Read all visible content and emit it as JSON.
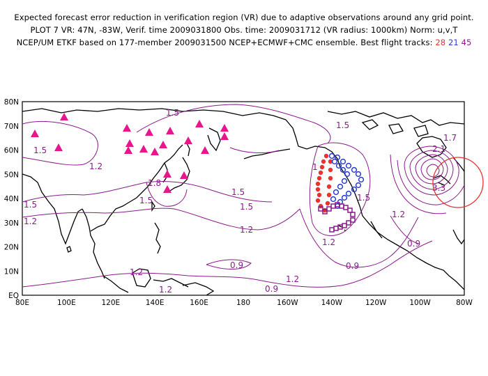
{
  "header": {
    "line1": "Expected forecast error reduction in verification region (VR) due to adaptive observations around any grid point.",
    "line2": "PLOT 7 VR: 47N, -83W, Verif. time 2009031800 Obs. time: 2009031712 (VR radius: 1000km) Norm: u,v,T",
    "line3_prefix": "NCEP/UM ETKF based on 177-member 2009031500 NCEP+ECMWF+CMC ensemble. Best flight tracks:",
    "tracks": [
      "28",
      "21",
      "45"
    ]
  },
  "map": {
    "lon_labels": [
      "80E",
      "100E",
      "120E",
      "140E",
      "160E",
      "180",
      "160W",
      "140W",
      "120W",
      "100W",
      "80W"
    ],
    "lat_labels": [
      "EQ",
      "10N",
      "20N",
      "30N",
      "40N",
      "50N",
      "60N",
      "70N",
      "80N"
    ],
    "contour_labels": [
      "1.5",
      "1.5",
      "1.5",
      "1.5",
      "1.2",
      "1.8",
      "1.5",
      "1.5",
      "1.2",
      "1.2",
      "1.2",
      "1.2",
      "0.9",
      "0.9",
      "0.9",
      "1.2",
      "1.5",
      "1.5",
      "1.2",
      "0.9",
      "1.2",
      "2.1",
      "3.3",
      "1.7",
      "1"
    ],
    "colors": {
      "track_red": "#e8332e",
      "track_blue": "#2a3ec8",
      "track_purple": "#8a1a8a",
      "contour": "#8a1a8a",
      "targets": "#e8168c",
      "vr_circle": "#e8332e"
    }
  }
}
